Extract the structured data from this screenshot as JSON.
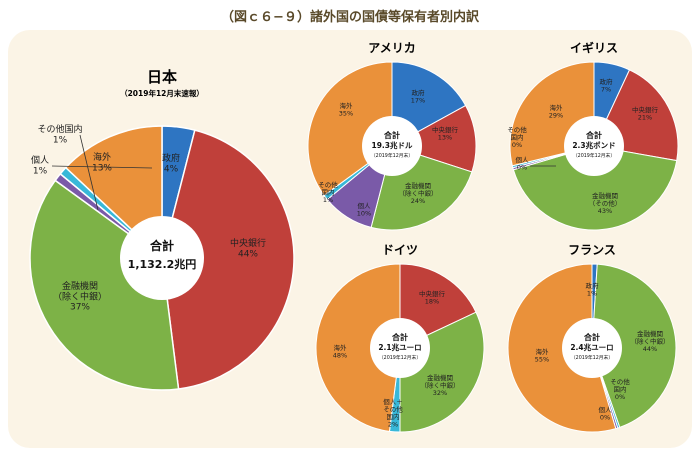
{
  "title": "（図ｃ６−９）諸外国の国債等保有者別内訳",
  "colors": {
    "gov": "#2e75c2",
    "central": "#c0403a",
    "financial": "#7db247",
    "individual": "#7a5aa8",
    "other_domestic": "#38b8d8",
    "foreign": "#ea913a",
    "center_text": "#111111",
    "label_text": "#222222",
    "panel_bg": "#fbf4e6"
  },
  "chart_data": [
    {
      "type": "pie",
      "title": "日本",
      "subtitle": "（2019年12月末速報）",
      "total_label": "合計",
      "total_value": "1,132.2兆円",
      "center_note": "",
      "slices": [
        {
          "key": "gov",
          "label": "政府",
          "pct_label": "4%",
          "value": 4
        },
        {
          "key": "central",
          "label": "中央銀行",
          "pct_label": "44%",
          "value": 44
        },
        {
          "key": "financial",
          "label": "金融機関\n（除く中銀）",
          "pct_label": "37%",
          "value": 37
        },
        {
          "key": "individual",
          "label": "個人",
          "pct_label": "1%",
          "value": 1
        },
        {
          "key": "other_domestic",
          "label": "その他国内",
          "pct_label": "1%",
          "value": 1
        },
        {
          "key": "foreign",
          "label": "海外",
          "pct_label": "13%",
          "value": 13
        }
      ]
    },
    {
      "type": "pie",
      "title": "アメリカ",
      "subtitle": "",
      "total_label": "合計",
      "total_value": "19.3兆ドル",
      "center_note": "（2019年12月末）",
      "slices": [
        {
          "key": "gov",
          "label": "政府",
          "pct_label": "17%",
          "value": 17
        },
        {
          "key": "central",
          "label": "中央銀行",
          "pct_label": "13%",
          "value": 13
        },
        {
          "key": "financial",
          "label": "金融機関\n（除く中銀）",
          "pct_label": "24%",
          "value": 24
        },
        {
          "key": "individual",
          "label": "個人",
          "pct_label": "10%",
          "value": 10
        },
        {
          "key": "other_domestic",
          "label": "その他\n国内",
          "pct_label": "1%",
          "value": 1
        },
        {
          "key": "foreign",
          "label": "海外",
          "pct_label": "35%",
          "value": 35
        }
      ]
    },
    {
      "type": "pie",
      "title": "イギリス",
      "subtitle": "",
      "total_label": "合計",
      "total_value": "2.3兆ポンド",
      "center_note": "（2019年12月末）",
      "slices": [
        {
          "key": "gov",
          "label": "政府",
          "pct_label": "7%",
          "value": 7
        },
        {
          "key": "central",
          "label": "中央銀行",
          "pct_label": "21%",
          "value": 21
        },
        {
          "key": "financial",
          "label": "金融機関\n（その他）",
          "pct_label": "43%",
          "value": 43
        },
        {
          "key": "individual",
          "label": "個人",
          "pct_label": "0%",
          "value": 0.4
        },
        {
          "key": "other_domestic",
          "label": "その他\n国内",
          "pct_label": "0%",
          "value": 0.4
        },
        {
          "key": "foreign",
          "label": "海外",
          "pct_label": "29%",
          "value": 29
        }
      ]
    },
    {
      "type": "pie",
      "title": "ドイツ",
      "subtitle": "",
      "total_label": "合計",
      "total_value": "2.1兆ユーロ",
      "center_note": "（2019年12月末）",
      "slices": [
        {
          "key": "central",
          "label": "中央銀行",
          "pct_label": "18%",
          "value": 18
        },
        {
          "key": "financial",
          "label": "金融機関\n（除く中銀）",
          "pct_label": "32%",
          "value": 32
        },
        {
          "key": "other_domestic",
          "label": "個人＋\nその他\n国内",
          "pct_label": "2%",
          "value": 2
        },
        {
          "key": "foreign",
          "label": "海外",
          "pct_label": "48%",
          "value": 48
        }
      ]
    },
    {
      "type": "pie",
      "title": "フランス",
      "subtitle": "",
      "total_label": "合計",
      "total_value": "2.4兆ユーロ",
      "center_note": "（2019年12月末）",
      "slices": [
        {
          "key": "gov",
          "label": "政府",
          "pct_label": "1%",
          "value": 1
        },
        {
          "key": "financial",
          "label": "金融機関\n（除く中銀）",
          "pct_label": "44%",
          "value": 44
        },
        {
          "key": "other_domestic",
          "label": "その他\n国内",
          "pct_label": "0%",
          "value": 0.4
        },
        {
          "key": "individual",
          "label": "個人",
          "pct_label": "0%",
          "value": 0.4
        },
        {
          "key": "foreign",
          "label": "海外",
          "pct_label": "55%",
          "value": 55
        }
      ]
    }
  ]
}
